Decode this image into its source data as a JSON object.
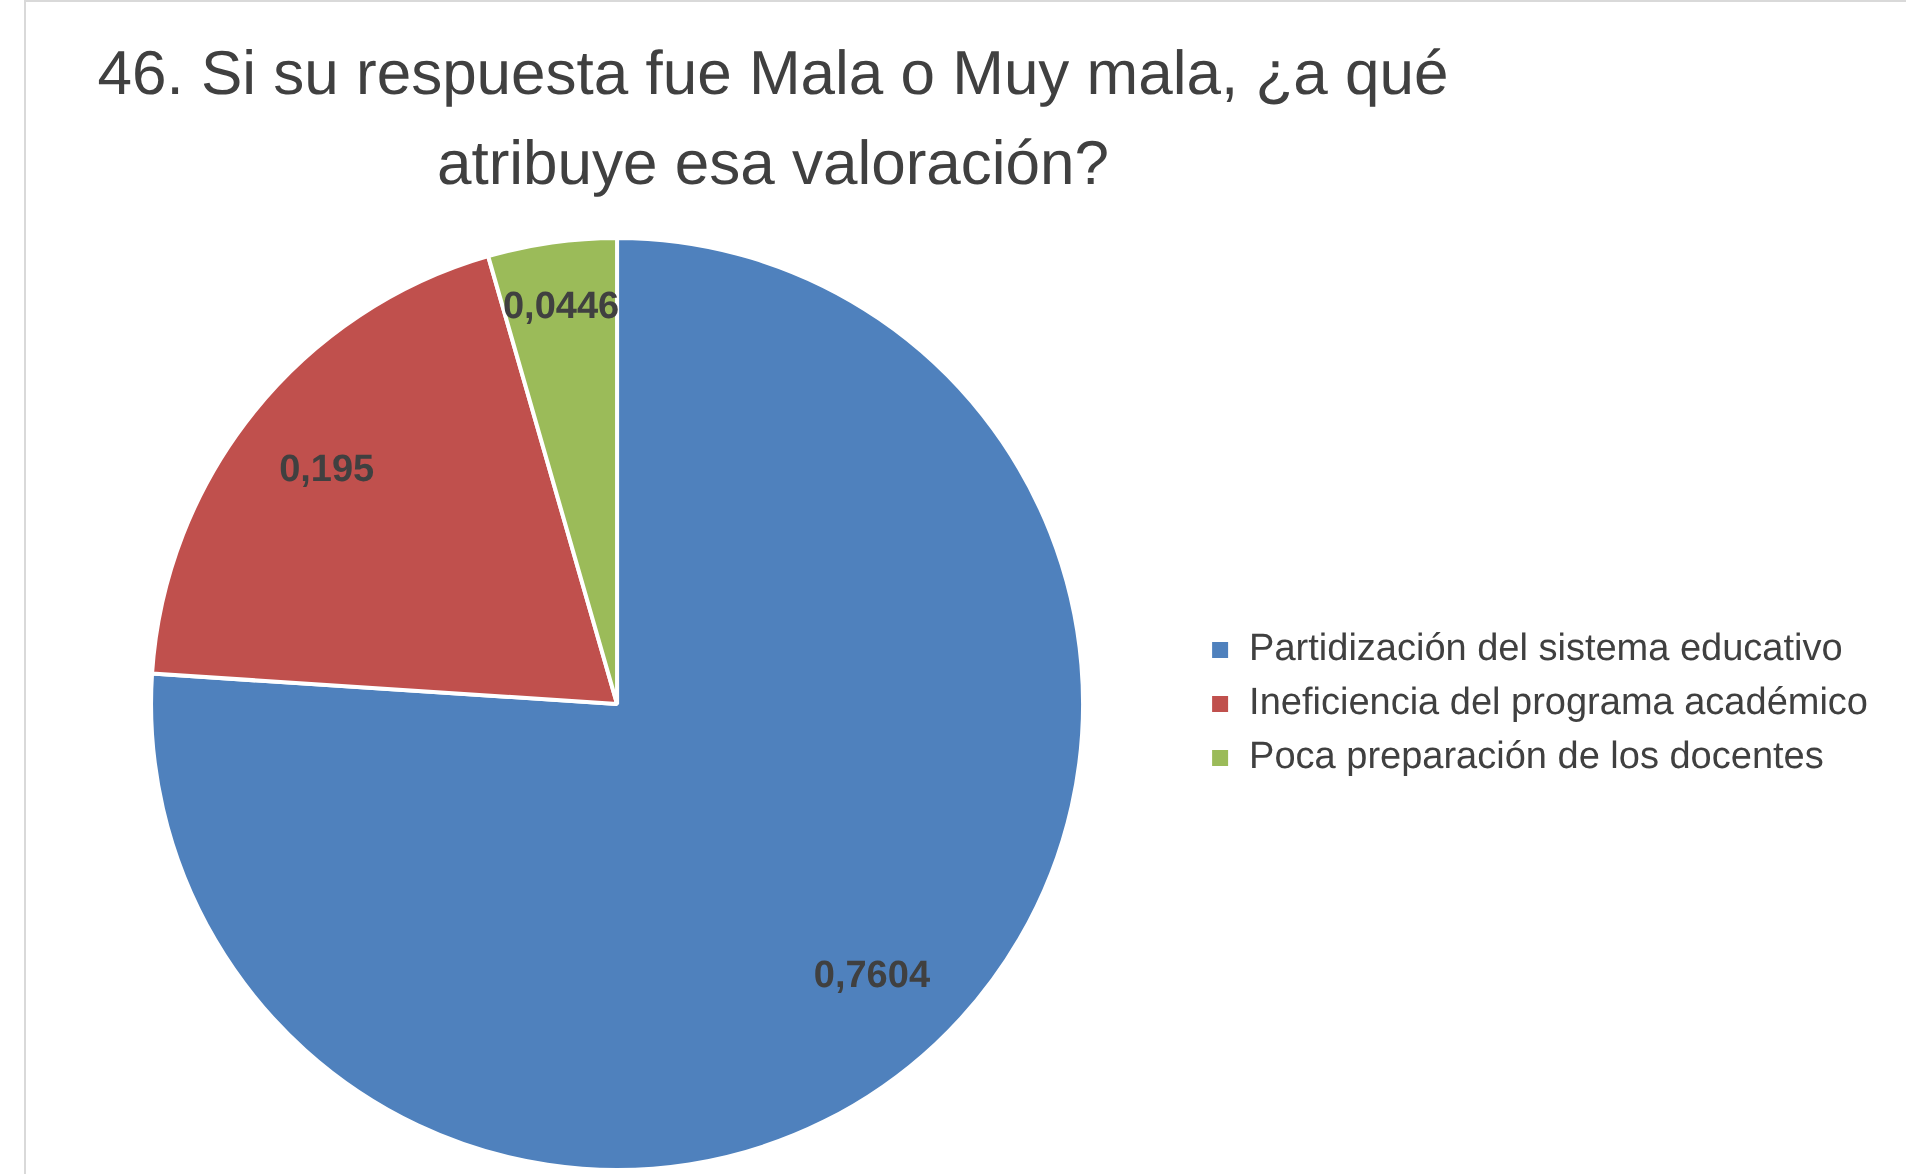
{
  "chart_data": {
    "type": "pie",
    "title": "46. Si su respuesta fue Mala o Muy mala, ¿a qué atribuye esa valoración?",
    "categories": [
      "Partidización del sistema educativo",
      "Ineficiencia del programa académico",
      "Poca preparación de los docentes"
    ],
    "values": [
      0.7604,
      0.195,
      0.0446
    ],
    "colors": [
      "#4f81bd",
      "#c0504d",
      "#9bbb59"
    ],
    "value_labels": [
      "0,7604",
      "0,195",
      "0,0446"
    ],
    "legend": "right"
  }
}
